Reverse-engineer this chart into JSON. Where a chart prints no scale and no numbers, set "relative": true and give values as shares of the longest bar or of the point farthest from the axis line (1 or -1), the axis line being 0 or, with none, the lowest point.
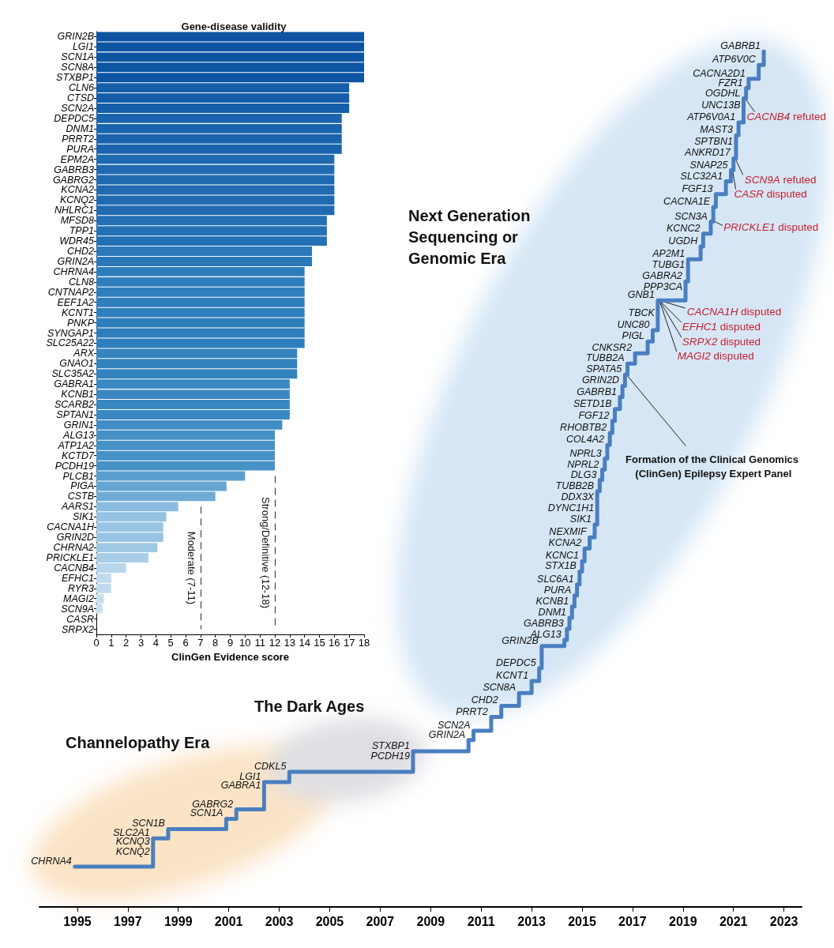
{
  "chart_data": [
    {
      "type": "bar",
      "orientation": "horizontal",
      "title": "Gene-disease validity",
      "xlabel": "ClinGen Evidence score",
      "categories": [
        "GRIN2B",
        "LGI1",
        "SCN1A",
        "SCN8A",
        "STXBP1",
        "CLN6",
        "CTSD",
        "SCN2A",
        "DEPDC5",
        "DNM1",
        "PRRT2",
        "PURA",
        "EPM2A",
        "GABRB3",
        "GABRG2",
        "KCNA2",
        "KCNQ2",
        "NHLRC1",
        "MFSD8",
        "TPP1",
        "WDR45",
        "CHD2",
        "GRIN2A",
        "CHRNA4",
        "CLN8",
        "CNTNAP2",
        "EEF1A2",
        "KCNT1",
        "PNKP",
        "SYNGAP1",
        "SLC25A22",
        "ARX",
        "GNAO1",
        "SLC35A2",
        "GABRA1",
        "KCNB1",
        "SCARB2",
        "SPTAN1",
        "GRIN1",
        "ALG13",
        "ATP1A2",
        "KCTD7",
        "PCDH19",
        "PLCB1",
        "PIGA",
        "CSTB",
        "AARS1",
        "SIK1",
        "CACNA1H",
        "GRIN2D",
        "CHRNA2",
        "PRICKLE1",
        "CACNB4",
        "EFHC1",
        "RYR3",
        "MAGI2",
        "SCN9A",
        "CASR",
        "SRPX2"
      ],
      "values": [
        18,
        18,
        18,
        18,
        18,
        17,
        17,
        17,
        16.5,
        16.5,
        16.5,
        16.5,
        16,
        16,
        16,
        16,
        16,
        16,
        15.5,
        15.5,
        15.5,
        14.5,
        14.5,
        14,
        14,
        14,
        14,
        14,
        14,
        14,
        14,
        13.5,
        13.5,
        13.5,
        13,
        13,
        13,
        13,
        12.5,
        12,
        12,
        12,
        12,
        10,
        8.75,
        8,
        5.5,
        4.7,
        4.5,
        4.5,
        4.1,
        3.5,
        2,
        1,
        1,
        0.5,
        0.4,
        0,
        0
      ],
      "colors": [
        "#0d55a3",
        "#0d55a3",
        "#0d55a3",
        "#0d55a3",
        "#0d55a3",
        "#155ea9",
        "#155ea9",
        "#155ea9",
        "#1a64ad",
        "#1a64ad",
        "#1a64ad",
        "#1a64ad",
        "#1f6ab1",
        "#1f6ab1",
        "#1f6ab1",
        "#1f6ab1",
        "#1f6ab1",
        "#1f6ab1",
        "#2470b4",
        "#2470b4",
        "#2470b4",
        "#2b79b9",
        "#2b79b9",
        "#2f7ebc",
        "#2f7ebc",
        "#2f7ebc",
        "#2f7ebc",
        "#2f7ebc",
        "#2f7ebc",
        "#2f7ebc",
        "#2f7ebc",
        "#3483be",
        "#3483be",
        "#3483be",
        "#3a88c1",
        "#3a88c1",
        "#3a88c1",
        "#3a88c1",
        "#408cc4",
        "#4691c6",
        "#4691c6",
        "#4691c6",
        "#4691c6",
        "#5a9ecd",
        "#66a5d1",
        "#70abd5",
        "#8bbcdf",
        "#95c2e2",
        "#99c4e3",
        "#99c4e3",
        "#9fc8e5",
        "#a7cde7",
        "#b7d6eb",
        "#c1dbee",
        "#c1dbee",
        "#c7dff0",
        "#c7dff0",
        "#c9e0f1",
        "#c9e0f1"
      ],
      "xlim": [
        0,
        18
      ],
      "xticks": [
        0,
        1,
        2,
        3,
        4,
        5,
        6,
        7,
        8,
        9,
        10,
        11,
        12,
        13,
        14,
        15,
        16,
        17,
        18
      ],
      "ref_lines": [
        {
          "axis": "x",
          "value": 7,
          "label": "Moderate (7-11)",
          "line_style": "dashed"
        },
        {
          "axis": "x",
          "value": 12,
          "label": "Strong/Definitive (12-18)",
          "line_style": "dashed"
        }
      ]
    },
    {
      "type": "step",
      "relative": true,
      "color": "#4a7fbf",
      "x": [
        1994.9,
        1998.0,
        1998.0,
        1998.0,
        1998.6,
        2000.9,
        2001.3,
        2002.4,
        2002.4,
        2003.4,
        2008.3,
        2008.3,
        2010.5,
        2010.7,
        2011.4,
        2011.8,
        2012.5,
        2013.0,
        2013.3,
        2013.4,
        2014.3,
        2014.4,
        2014.5,
        2014.6,
        2014.7,
        2014.8,
        2014.9,
        2015.0,
        2015.1,
        2015.3,
        2015.5,
        2015.6,
        2015.6,
        2015.6,
        2015.7,
        2015.8,
        2015.9,
        2016.0,
        2016.1,
        2016.2,
        2016.3,
        2016.5,
        2016.6,
        2016.7,
        2016.8,
        2017.1,
        2017.6,
        2017.8,
        2018.0,
        2018.0,
        2019.1,
        2019.1,
        2019.2,
        2019.2,
        2019.7,
        2019.8,
        2020.1,
        2020.2,
        2020.3,
        2020.7,
        2020.9,
        2021.0,
        2021.1,
        2021.1,
        2021.2,
        2021.4,
        2021.4,
        2021.5,
        2021.6,
        2022.0,
        2022.2
      ],
      "values": [
        0.047,
        0.058,
        0.07,
        0.08,
        0.091,
        0.103,
        0.114,
        0.136,
        0.146,
        0.158,
        0.17,
        0.182,
        0.195,
        0.206,
        0.222,
        0.235,
        0.25,
        0.264,
        0.279,
        0.305,
        0.312,
        0.325,
        0.338,
        0.351,
        0.364,
        0.377,
        0.392,
        0.404,
        0.419,
        0.432,
        0.447,
        0.46,
        0.473,
        0.486,
        0.499,
        0.511,
        0.524,
        0.54,
        0.554,
        0.568,
        0.582,
        0.596,
        0.609,
        0.622,
        0.635,
        0.647,
        0.661,
        0.674,
        0.688,
        0.709,
        0.718,
        0.731,
        0.744,
        0.757,
        0.772,
        0.787,
        0.801,
        0.818,
        0.833,
        0.848,
        0.861,
        0.875,
        0.888,
        0.902,
        0.917,
        0.931,
        0.945,
        0.957,
        0.968,
        0.984,
        1.0
      ],
      "xlim": [
        1993.5,
        2023.7
      ],
      "xticks": [
        1995,
        1997,
        1999,
        2001,
        2003,
        2005,
        2007,
        2009,
        2011,
        2013,
        2015,
        2017,
        2019,
        2021,
        2023
      ],
      "annotations": [
        "Channelopathy Era",
        "The Dark Ages",
        "Next Generation Sequencing or Genomic Era",
        {
          "text": "CHRNA4",
          "x": 1994.9,
          "y": 0.047
        },
        {
          "text": "KCNQ2",
          "x": 1998.0,
          "y": 0.058
        },
        {
          "text": "KCNQ3",
          "x": 1998.0,
          "y": 0.07
        },
        {
          "text": "SLC2A1",
          "x": 1998.0,
          "y": 0.08
        },
        {
          "text": "SCN1B",
          "x": 1998.6,
          "y": 0.091
        },
        {
          "text": "SCN1A",
          "x": 2000.9,
          "y": 0.103
        },
        {
          "text": "GABRG2",
          "x": 2001.3,
          "y": 0.114
        },
        {
          "text": "GABRA1",
          "x": 2002.4,
          "y": 0.136
        },
        {
          "text": "LGI1",
          "x": 2002.4,
          "y": 0.146
        },
        {
          "text": "CDKL5",
          "x": 2003.4,
          "y": 0.158
        },
        {
          "text": "PCDH19",
          "x": 2008.3,
          "y": 0.17
        },
        {
          "text": "STXBP1",
          "x": 2008.3,
          "y": 0.182
        },
        {
          "text": "GRIN2A",
          "x": 2010.5,
          "y": 0.195
        },
        {
          "text": "SCN2A",
          "x": 2010.7,
          "y": 0.206
        },
        {
          "text": "PRRT2",
          "x": 2011.4,
          "y": 0.222
        },
        {
          "text": "CHD2",
          "x": 2011.8,
          "y": 0.235
        },
        {
          "text": "SCN8A",
          "x": 2012.5,
          "y": 0.25
        },
        {
          "text": "KCNT1",
          "x": 2013.0,
          "y": 0.264
        },
        {
          "text": "DEPDC5",
          "x": 2013.3,
          "y": 0.279
        },
        {
          "text": "GRIN2B",
          "x": 2013.4,
          "y": 0.305
        },
        {
          "text": "ALG13",
          "x": 2014.3,
          "y": 0.312
        },
        {
          "text": "GABRB3",
          "x": 2014.4,
          "y": 0.325
        },
        {
          "text": "DNM1",
          "x": 2014.5,
          "y": 0.338
        },
        {
          "text": "KCNB1",
          "x": 2014.6,
          "y": 0.351
        },
        {
          "text": "PURA",
          "x": 2014.7,
          "y": 0.364
        },
        {
          "text": "SLC6A1",
          "x": 2014.8,
          "y": 0.377
        },
        {
          "text": "STX1B",
          "x": 2014.9,
          "y": 0.392
        },
        {
          "text": "KCNC1",
          "x": 2015.0,
          "y": 0.404
        },
        {
          "text": "KCNA2",
          "x": 2015.1,
          "y": 0.419
        },
        {
          "text": "NEXMIF",
          "x": 2015.3,
          "y": 0.432
        },
        {
          "text": "SIK1",
          "x": 2015.5,
          "y": 0.447
        },
        {
          "text": "DYNC1H1",
          "x": 2015.6,
          "y": 0.46
        },
        {
          "text": "DDX3X",
          "x": 2015.6,
          "y": 0.473
        },
        {
          "text": "TUBB2B",
          "x": 2015.6,
          "y": 0.486
        },
        {
          "text": "DLG3",
          "x": 2015.7,
          "y": 0.499
        },
        {
          "text": "NPRL2",
          "x": 2015.8,
          "y": 0.511
        },
        {
          "text": "NPRL3",
          "x": 2015.9,
          "y": 0.524
        },
        {
          "text": "COL4A2",
          "x": 2016.0,
          "y": 0.54
        },
        {
          "text": "RHOBTB2",
          "x": 2016.1,
          "y": 0.554
        },
        {
          "text": "FGF12",
          "x": 2016.2,
          "y": 0.568
        },
        {
          "text": "SETD1B",
          "x": 2016.3,
          "y": 0.582
        },
        {
          "text": "GABRB1",
          "x": 2016.5,
          "y": 0.596
        },
        {
          "text": "GRIN2D",
          "x": 2016.6,
          "y": 0.609
        },
        {
          "text": "SPATA5",
          "x": 2016.7,
          "y": 0.622
        },
        {
          "text": "TUBB2A",
          "x": 2016.8,
          "y": 0.635
        },
        {
          "text": "CNKSR2",
          "x": 2017.1,
          "y": 0.647
        },
        {
          "text": "PIGL",
          "x": 2017.6,
          "y": 0.661
        },
        {
          "text": "UNC80",
          "x": 2017.8,
          "y": 0.674
        },
        {
          "text": "TBCK",
          "x": 2018.0,
          "y": 0.688
        },
        {
          "text": "GNB1",
          "x": 2018.0,
          "y": 0.709
        },
        {
          "text": "PPP3CA",
          "x": 2019.1,
          "y": 0.718
        },
        {
          "text": "GABRA2",
          "x": 2019.1,
          "y": 0.731
        },
        {
          "text": "TUBG1",
          "x": 2019.2,
          "y": 0.744
        },
        {
          "text": "AP2M1",
          "x": 2019.2,
          "y": 0.757
        },
        {
          "text": "UGDH",
          "x": 2019.7,
          "y": 0.772
        },
        {
          "text": "KCNC2",
          "x": 2019.8,
          "y": 0.787
        },
        {
          "text": "SCN3A",
          "x": 2020.1,
          "y": 0.801
        },
        {
          "text": "CACNA1E",
          "x": 2020.2,
          "y": 0.818
        },
        {
          "text": "FGF13",
          "x": 2020.3,
          "y": 0.833
        },
        {
          "text": "SLC32A1",
          "x": 2020.7,
          "y": 0.848
        },
        {
          "text": "SNAP25",
          "x": 2020.9,
          "y": 0.861
        },
        {
          "text": "ANKRD17",
          "x": 2021.0,
          "y": 0.875
        },
        {
          "text": "SPTBN1",
          "x": 2021.1,
          "y": 0.888
        },
        {
          "text": "MAST3",
          "x": 2021.1,
          "y": 0.902
        },
        {
          "text": "ATP6V0A1",
          "x": 2021.2,
          "y": 0.917
        },
        {
          "text": "UNC13B",
          "x": 2021.4,
          "y": 0.931
        },
        {
          "text": "OGDHL",
          "x": 2021.4,
          "y": 0.945
        },
        {
          "text": "FZR1",
          "x": 2021.5,
          "y": 0.957
        },
        {
          "text": "CACNA2D1",
          "x": 2021.6,
          "y": 0.968
        },
        {
          "text": "ATP6V0C",
          "x": 2022.0,
          "y": 0.984
        },
        {
          "text": "GABRB1",
          "x": 2022.2,
          "y": 1.0
        },
        {
          "text": "CACNB4 refuted",
          "x": 2021.4,
          "y": 0.945
        },
        {
          "text": "SCN9A refuted",
          "x": 2021.0,
          "y": 0.875
        },
        {
          "text": "CASR disputed",
          "x": 2020.9,
          "y": 0.861
        },
        {
          "text": "PRICKLE1 disputed",
          "x": 2020.2,
          "y": 0.801
        },
        {
          "text": "CACNA1H disputed",
          "x": 2018.0,
          "y": 0.709
        },
        {
          "text": "EFHC1 disputed",
          "x": 2018.0,
          "y": 0.709
        },
        {
          "text": "SRPX2 disputed",
          "x": 2018.0,
          "y": 0.709
        },
        {
          "text": "MAGI2 disputed",
          "x": 2018.0,
          "y": 0.709
        },
        {
          "text": "Formation of the Clinical Genomics (ClinGen) Epilepsy Expert Panel",
          "x": 2016.7,
          "y": 0.622
        }
      ]
    }
  ]
}
